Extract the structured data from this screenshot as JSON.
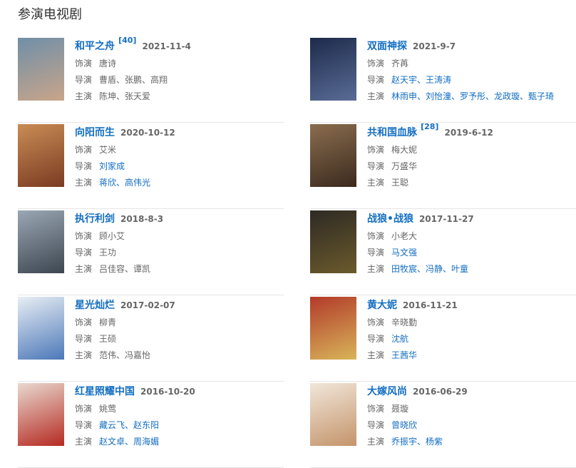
{
  "header": {
    "title": "参演电视剧"
  },
  "labels": {
    "role": "饰演",
    "director": "导演",
    "stars": "主演"
  },
  "items": [
    {
      "title": "和平之舟",
      "ref": "[40]",
      "date": "2021-11-4",
      "role": "唐诗",
      "director": "曹盾、张鹏、高翔",
      "director_linked": false,
      "stars": "陈坤、张天爱",
      "stars_linked": false,
      "poster": [
        "#6f8fa8",
        "#c9a58a"
      ]
    },
    {
      "title": "双面神探",
      "date": "2021-9-7",
      "role": "齐苒",
      "director": "赵天宇、王涛涛",
      "director_linked": true,
      "stars": "林雨申、刘怡潼、罗予彤、龙政璇、甄子琦",
      "stars_linked": true,
      "poster": [
        "#1d2a4a",
        "#5a6c96"
      ]
    },
    {
      "title": "向阳而生",
      "date": "2020-10-12",
      "role": "艾米",
      "director": "刘家成",
      "director_linked": true,
      "stars": "蒋欣、高伟光",
      "stars_linked": true,
      "poster": [
        "#c98c55",
        "#7a3b22"
      ]
    },
    {
      "title": "共和国血脉",
      "ref": "[28]",
      "date": "2019-6-12",
      "role": "梅大妮",
      "director": "万盛华",
      "director_linked": false,
      "stars": "王聪",
      "stars_linked": false,
      "poster": [
        "#8a6d4f",
        "#3b2a1e"
      ]
    },
    {
      "title": "执行利剑",
      "date": "2018-8-3",
      "role": "顾小艾",
      "director": "王功",
      "director_linked": false,
      "stars": "吕佳容、谭凯",
      "stars_linked": false,
      "poster": [
        "#9aa7b4",
        "#3d4650"
      ]
    },
    {
      "title": "战狼•战狼",
      "date": "2017-11-27",
      "role": "小老大",
      "director": "马文强",
      "director_linked": true,
      "stars": "田牧宸、冯静、叶童",
      "stars_linked": true,
      "poster": [
        "#2e2a24",
        "#6b5a2c"
      ]
    },
    {
      "title": "星光灿烂",
      "date": "2017-02-07",
      "role": "柳青",
      "director": "王硕",
      "director_linked": false,
      "stars": "范伟、冯嘉怡",
      "stars_linked": false,
      "poster": [
        "#e8eef4",
        "#4c78b8"
      ]
    },
    {
      "title": "黄大妮",
      "date": "2016-11-21",
      "role": "辛晓勤",
      "director": "沈航",
      "director_linked": true,
      "stars": "王茜华",
      "stars_linked": true,
      "poster": [
        "#b23a2a",
        "#d8b55a"
      ]
    },
    {
      "title": "红星照耀中国",
      "date": "2016-10-20",
      "role": "姚莺",
      "director": "藏云飞、赵东阳",
      "director_linked": true,
      "stars": "赵文卓、周海媚",
      "stars_linked": true,
      "poster": [
        "#e9d9cf",
        "#b52a22"
      ]
    },
    {
      "title": "大嫁风尚",
      "date": "2016-06-29",
      "role": "聂璇",
      "director": "曾晓欣",
      "director_linked": true,
      "stars": "乔振宇、杨紫",
      "stars_linked": true,
      "poster": [
        "#f1e6da",
        "#c4946a"
      ]
    }
  ]
}
